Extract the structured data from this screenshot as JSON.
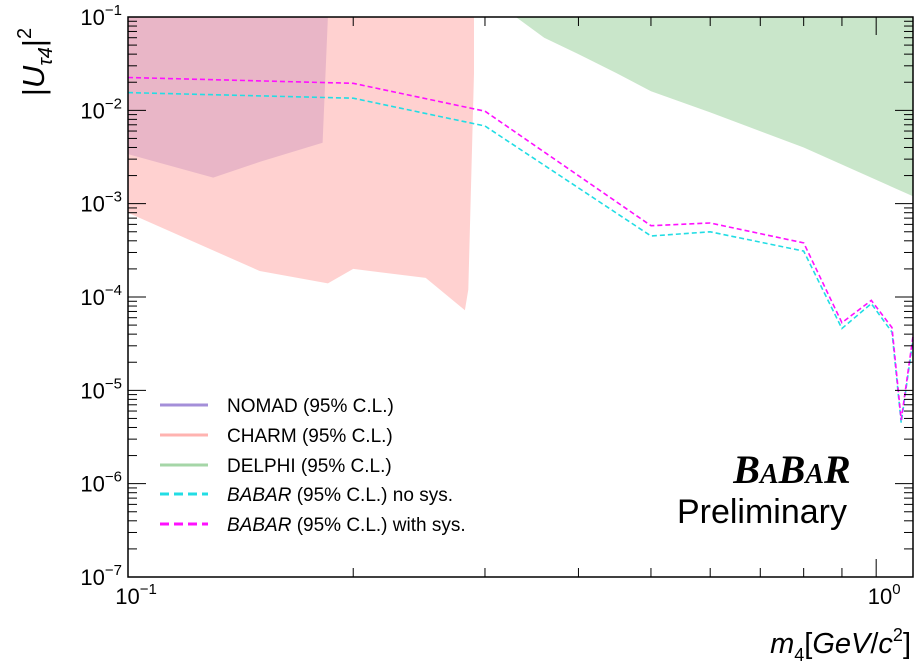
{
  "colors": {
    "nomad": "#a48fd9",
    "charm": "#ffb3b0",
    "delphi": "#a5d6a7",
    "babar_nosys": "#22dde4",
    "babar_sys": "#ff10ff"
  },
  "logo": {
    "text": "BaBar",
    "subtitle": "Preliminary"
  },
  "chart_data": {
    "type": "line",
    "xscale": "log",
    "yscale": "log",
    "xlim": [
      0.1,
      1.12
    ],
    "ylim": [
      1e-07,
      0.1
    ],
    "ylabel": "|U_τ4|²",
    "xlabel": "m4[GeV/c²]",
    "x_ticks": [
      {
        "value": 0.1,
        "base": "10",
        "exp": "−1"
      },
      {
        "value": 1,
        "base": "10",
        "exp": "0"
      }
    ],
    "y_ticks": [
      {
        "value": 0.1,
        "base": "10",
        "exp": "−1"
      },
      {
        "value": 0.01,
        "base": "10",
        "exp": "−2"
      },
      {
        "value": 0.001,
        "base": "10",
        "exp": "−3"
      },
      {
        "value": 0.0001,
        "base": "10",
        "exp": "−4"
      },
      {
        "value": 1e-05,
        "base": "10",
        "exp": "−5"
      },
      {
        "value": 1e-06,
        "base": "10",
        "exp": "−6"
      },
      {
        "value": 1e-07,
        "base": "10",
        "exp": "−7"
      }
    ],
    "legend_position": "bottom-left",
    "series": [
      {
        "name": "NOMAD (95% C.L.)",
        "name_italic": "",
        "name_rest": "NOMAD (95% C.L.)",
        "style": "filled-region",
        "color": "#a48fd9",
        "points": [
          [
            0.1,
            0.1
          ],
          [
            0.185,
            0.1
          ],
          [
            0.182,
            0.0045
          ],
          [
            0.15,
            0.0028
          ],
          [
            0.13,
            0.0019
          ],
          [
            0.1,
            0.0034
          ]
        ]
      },
      {
        "name": "CHARM (95% C.L.)",
        "name_italic": "",
        "name_rest": "CHARM (95% C.L.)",
        "style": "filled-region",
        "color": "#ffb3b0",
        "points": [
          [
            0.1,
            0.1
          ],
          [
            0.29,
            0.1
          ],
          [
            0.29,
            0.025
          ],
          [
            0.285,
            0.00012
          ],
          [
            0.282,
            7.2e-05
          ],
          [
            0.25,
            0.00016
          ],
          [
            0.2,
            0.0002
          ],
          [
            0.185,
            0.00014
          ],
          [
            0.15,
            0.00019
          ],
          [
            0.1,
            0.0008
          ]
        ]
      },
      {
        "name": "DELPHI (95% C.L.)",
        "name_italic": "",
        "name_rest": "DELPHI (95% C.L.)",
        "style": "filled-region",
        "color": "#a5d6a7",
        "points": [
          [
            0.33,
            0.1
          ],
          [
            1.12,
            0.1
          ],
          [
            1.12,
            0.0012
          ],
          [
            0.8,
            0.004
          ],
          [
            0.6,
            0.0095
          ],
          [
            0.5,
            0.016
          ],
          [
            0.45,
            0.025
          ],
          [
            0.4,
            0.04
          ],
          [
            0.36,
            0.06
          ]
        ]
      },
      {
        "name": "BABAR (95% C.L.) no sys.",
        "name_italic": "BABAR",
        "name_rest": " (95% C.L.) no sys.",
        "style": "dashed-line",
        "color": "#22dde4",
        "points": [
          [
            0.1,
            0.0155
          ],
          [
            0.2,
            0.0135
          ],
          [
            0.3,
            0.0068
          ],
          [
            0.5,
            0.00045
          ],
          [
            0.6,
            0.0005
          ],
          [
            0.8,
            0.00031
          ],
          [
            0.9,
            4.6e-05
          ],
          [
            0.985,
            8.5e-05
          ],
          [
            1.05,
            4.2e-05
          ],
          [
            1.08,
            4.5e-06
          ],
          [
            1.12,
            3.5e-05
          ]
        ]
      },
      {
        "name": "BABAR (95% C.L.) with sys.",
        "name_italic": "BABAR",
        "name_rest": " (95% C.L.) with sys.",
        "style": "dashed-line",
        "color": "#ff10ff",
        "points": [
          [
            0.1,
            0.0225
          ],
          [
            0.2,
            0.0195
          ],
          [
            0.3,
            0.0098
          ],
          [
            0.5,
            0.00058
          ],
          [
            0.6,
            0.00062
          ],
          [
            0.8,
            0.00038
          ],
          [
            0.9,
            5.3e-05
          ],
          [
            0.985,
            9.2e-05
          ],
          [
            1.05,
            4.7e-05
          ],
          [
            1.08,
            4.8e-06
          ],
          [
            1.12,
            3.8e-05
          ]
        ]
      }
    ]
  }
}
